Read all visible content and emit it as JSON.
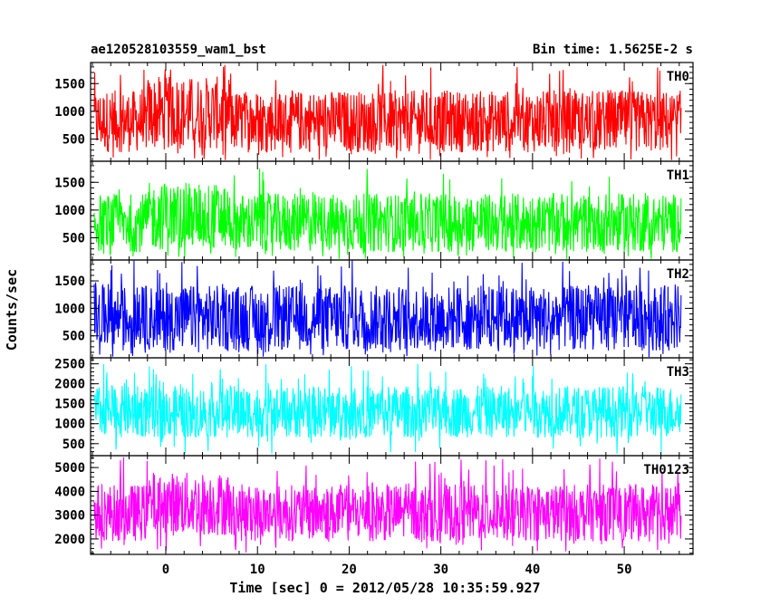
{
  "chart_data": {
    "type": "line",
    "title_left": "ae120528103559_wam1_bst",
    "title_right": "Bin time: 1.5625E-2 s",
    "xlabel": "Time [sec] 0 = 2012/05/28 10:35:59.927",
    "ylabel": "Counts/sec",
    "xlim": [
      -8.2,
      57.5
    ],
    "data_range": [
      -7.8,
      56.2
    ],
    "xticks_major": [
      0,
      10,
      20,
      30,
      40,
      50
    ],
    "xtick_labels": [
      "0",
      "10",
      "20",
      "30",
      "40",
      "50"
    ],
    "xticks_minor_step": 2,
    "panels": [
      {
        "name": "TH0",
        "color": "#ff0000",
        "ylim": [
          100,
          1880
        ],
        "yticks": [
          500,
          1000,
          1500
        ],
        "ytick_labels": [
          "500",
          "1000",
          "1500"
        ],
        "minor_step": 100,
        "typical_low": 260,
        "typical_high": 1380,
        "peak_max": 1850,
        "enhanced_interval": [
          -2,
          7
        ],
        "enhanced_level": 1.18
      },
      {
        "name": "TH1",
        "color": "#00ff00",
        "ylim": [
          100,
          1880
        ],
        "yticks": [
          500,
          1000,
          1500
        ],
        "ytick_labels": [
          "500",
          "1000",
          "1500"
        ],
        "minor_step": 100,
        "typical_low": 240,
        "typical_high": 1300,
        "peak_max": 1780,
        "enhanced_interval": [
          -2,
          7
        ],
        "enhanced_level": 1.15
      },
      {
        "name": "TH2",
        "color": "#0000ff",
        "ylim": [
          100,
          1880
        ],
        "yticks": [
          500,
          1000,
          1500
        ],
        "ytick_labels": [
          "500",
          "1000",
          "1500"
        ],
        "minor_step": 100,
        "typical_low": 230,
        "typical_high": 1420,
        "peak_max": 1880,
        "enhanced_interval": [
          0,
          0
        ],
        "enhanced_level": 1.0
      },
      {
        "name": "TH3",
        "color": "#00ffff",
        "ylim": [
          200,
          2650
        ],
        "yticks": [
          500,
          1000,
          1500,
          2000,
          2500
        ],
        "ytick_labels": [
          "500",
          "1000",
          "1500",
          "2000",
          "2500"
        ],
        "minor_step": 100,
        "typical_low": 650,
        "typical_high": 1950,
        "peak_max": 2550,
        "enhanced_interval": [
          0,
          0
        ],
        "enhanced_level": 1.0
      },
      {
        "name": "TH0123",
        "color": "#ff00ff",
        "ylim": [
          1350,
          5500
        ],
        "yticks": [
          2000,
          3000,
          4000,
          5000
        ],
        "ytick_labels": [
          "2000",
          "3000",
          "4000",
          "5000"
        ],
        "minor_step": 200,
        "typical_low": 1900,
        "typical_high": 4300,
        "peak_max": 5450,
        "enhanced_interval": [
          -2,
          7
        ],
        "enhanced_level": 1.12
      }
    ]
  }
}
